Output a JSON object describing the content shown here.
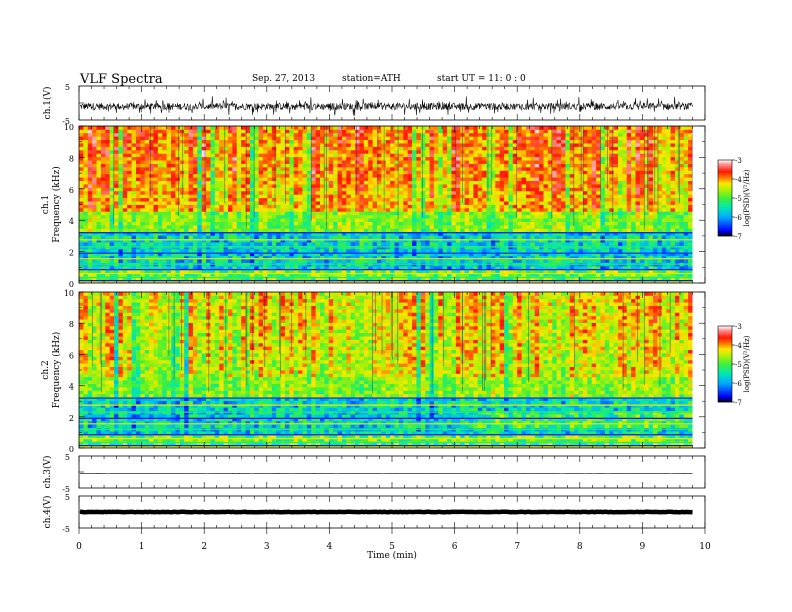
{
  "header": {
    "title": "VLF  Spectra",
    "date": "Sep. 27, 2013",
    "station": "station=ATH",
    "start": "start  UT =   11: 0  : 0"
  },
  "chart_data": [
    {
      "type": "line",
      "panel": "waveform-ch1",
      "ylabel": "ch.1(V)",
      "ylim": [
        -5,
        5
      ],
      "yticks": [
        "5",
        "-5"
      ],
      "xlim": [
        0,
        10
      ],
      "x_end": 9.8,
      "baseline": -1.0,
      "amplitude": 1.5
    },
    {
      "type": "heatmap",
      "panel": "spectrogram-ch1",
      "ylabel_line1": "ch.1",
      "ylabel_line2": "Frequency  (kHz)",
      "ylim": [
        0,
        10
      ],
      "yticks": [
        "0",
        "2",
        "4",
        "6",
        "8",
        "10"
      ],
      "xlim": [
        0,
        10
      ],
      "x_end": 9.8,
      "colorbar": {
        "label": "log(PSD)(V²/Hz)",
        "range": [
          -7,
          -3
        ],
        "ticks": [
          "-3",
          "-4",
          "-5",
          "-6",
          "-7"
        ]
      }
    },
    {
      "type": "heatmap",
      "panel": "spectrogram-ch2",
      "ylabel_line1": "ch.2",
      "ylabel_line2": "Frequency  (kHz)",
      "ylim": [
        0,
        10
      ],
      "yticks": [
        "0",
        "2",
        "4",
        "6",
        "8",
        "10"
      ],
      "xlim": [
        0,
        10
      ],
      "x_end": 9.8,
      "colorbar": {
        "label": "log(PSD)(V²/Hz)",
        "range": [
          -7,
          -3
        ],
        "ticks": [
          "-3",
          "-4",
          "-5",
          "-6",
          "-7"
        ]
      }
    },
    {
      "type": "line",
      "panel": "waveform-ch3",
      "ylabel": "ch.3(V)",
      "ylim": [
        -5,
        5
      ],
      "yticks": [
        "5",
        "-5"
      ],
      "xlim": [
        0,
        10
      ],
      "x_end": 9.8,
      "baseline": -0.5,
      "amplitude": 0.05
    },
    {
      "type": "line",
      "panel": "waveform-ch4",
      "ylabel": "ch.4(V)",
      "ylim": [
        -5,
        5
      ],
      "yticks": [
        "5",
        "-5"
      ],
      "xlim": [
        0,
        10
      ],
      "x_end": 9.8,
      "baseline": 0.0,
      "amplitude": 0.15
    }
  ],
  "xaxis": {
    "label": "Time  (min)",
    "ticks": [
      "0",
      "1",
      "2",
      "3",
      "4",
      "5",
      "6",
      "7",
      "8",
      "9",
      "10"
    ]
  }
}
